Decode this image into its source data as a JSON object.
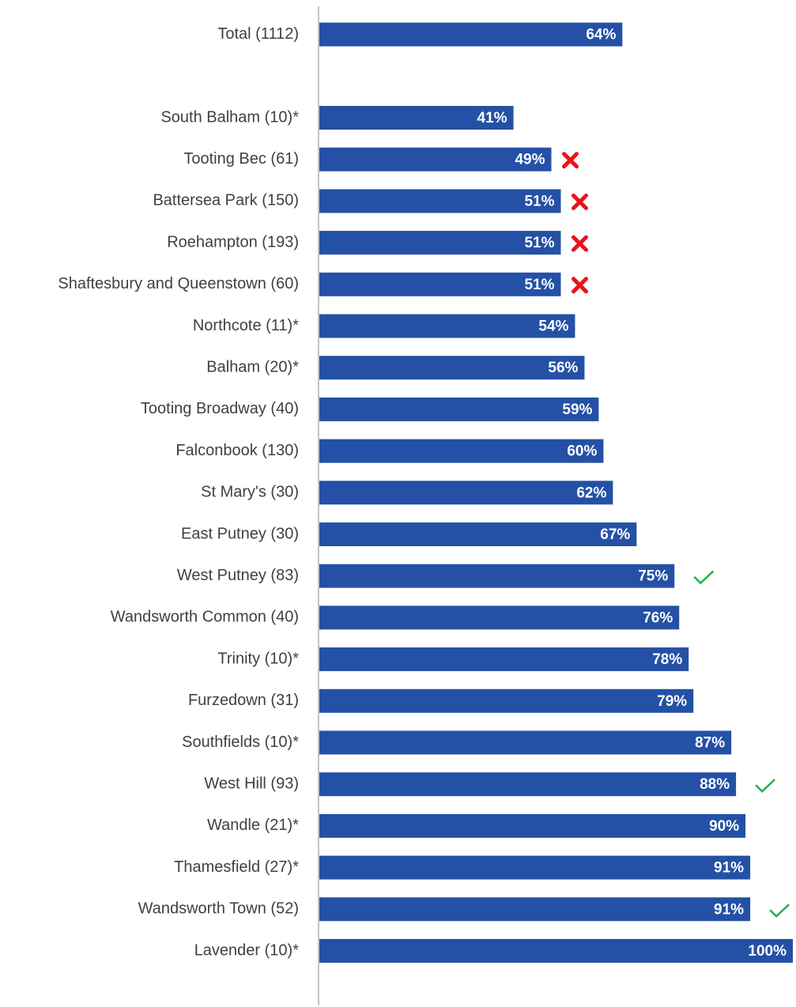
{
  "chart_data": {
    "type": "bar",
    "orientation": "horizontal",
    "categories": [
      "Total (1112)",
      null,
      "South Balham (10)*",
      "Tooting Bec (61)",
      "Battersea Park (150)",
      "Roehampton (193)",
      "Shaftesbury and Queenstown (60)",
      "Northcote (11)*",
      "Balham (20)*",
      "Tooting Broadway (40)",
      "Falconbook (130)",
      "St Mary's (30)",
      "East Putney (30)",
      "West Putney (83)",
      "Wandsworth Common (40)",
      "Trinity (10)*",
      "Furzedown (31)",
      "Southfields (10)*",
      "West Hill (93)",
      "Wandle (21)*",
      "Thamesfield (27)*",
      "Wandsworth Town (52)",
      "Lavender (10)*"
    ],
    "values": [
      64,
      null,
      41,
      49,
      51,
      51,
      51,
      54,
      56,
      59,
      60,
      62,
      67,
      75,
      76,
      78,
      79,
      87,
      88,
      90,
      91,
      91,
      100
    ],
    "value_labels": [
      "64%",
      null,
      "41%",
      "49%",
      "51%",
      "51%",
      "51%",
      "54%",
      "56%",
      "59%",
      "60%",
      "62%",
      "67%",
      "75%",
      "76%",
      "78%",
      "79%",
      "87%",
      "88%",
      "90%",
      "91%",
      "91%",
      "100%"
    ],
    "status": [
      null,
      null,
      null,
      "cross",
      "cross",
      "cross",
      "cross",
      null,
      null,
      null,
      null,
      null,
      null,
      "check",
      null,
      null,
      null,
      null,
      "check",
      null,
      null,
      "check",
      null
    ],
    "color": "#2451a6",
    "xlim": [
      0,
      100
    ]
  }
}
